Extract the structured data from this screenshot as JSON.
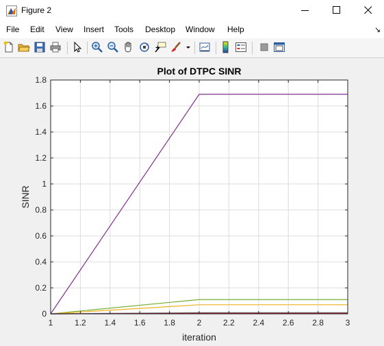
{
  "window": {
    "title": "Figure 2",
    "icon": "matlab-figure-icon"
  },
  "menu": [
    "File",
    "Edit",
    "View",
    "Insert",
    "Tools",
    "Desktop",
    "Window",
    "Help"
  ],
  "toolbar": {
    "buttons": [
      "new-figure-icon",
      "open-file-icon",
      "save-icon",
      "print-icon",
      "pointer-icon",
      "zoom-in-icon",
      "zoom-out-icon",
      "pan-icon",
      "rotate-3d-icon",
      "data-cursor-icon",
      "brush-icon",
      "link-plot-icon",
      "colorbar-icon",
      "legend-icon",
      "hide-plot-tools-icon",
      "show-plot-tools-icon"
    ]
  },
  "chart_data": {
    "type": "line",
    "title": "Plot of DTPC SINR",
    "xlabel": "iteration",
    "ylabel": "SINR",
    "xlim": [
      1,
      3
    ],
    "ylim": [
      0,
      1.8
    ],
    "xticks": [
      "1",
      "1.2",
      "1.4",
      "1.6",
      "1.8",
      "2",
      "2.2",
      "2.4",
      "2.6",
      "2.8",
      "3"
    ],
    "yticks": [
      "0",
      "0.2",
      "0.4",
      "0.6",
      "0.8",
      "1",
      "1.2",
      "1.4",
      "1.6",
      "1.8"
    ],
    "grid": true,
    "x": [
      1,
      2,
      3
    ],
    "series": [
      {
        "values": [
          0,
          1.69,
          1.69
        ],
        "color": "#7e2f8e"
      },
      {
        "values": [
          0,
          0.11,
          0.11
        ],
        "color": "#77ac30"
      },
      {
        "values": [
          0,
          0.07,
          0.07
        ],
        "color": "#edb120"
      },
      {
        "values": [
          0,
          0.01,
          0.01
        ],
        "color": "#4dbeee"
      },
      {
        "values": [
          0,
          0.008,
          0.008
        ],
        "color": "#d95319"
      },
      {
        "values": [
          0,
          0.005,
          0.005
        ],
        "color": "#0072bd"
      },
      {
        "values": [
          0,
          0.003,
          0.003
        ],
        "color": "#a2142f"
      }
    ]
  }
}
